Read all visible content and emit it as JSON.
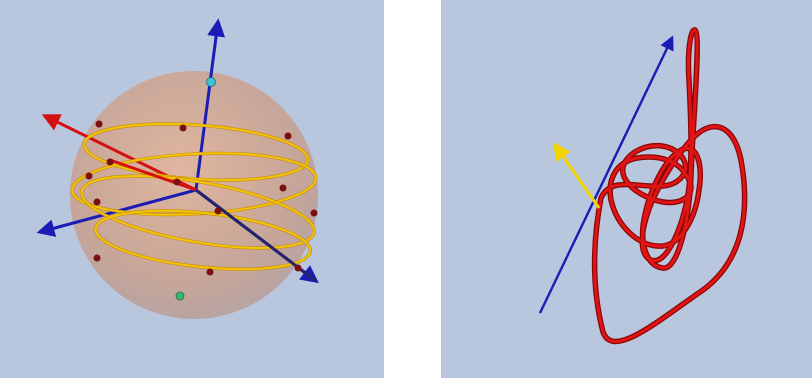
{
  "colors": {
    "background": "#b8c6de",
    "sphere": "#d4a58e",
    "circle": "#f2c50a",
    "circle_outline": "#c88a00",
    "dot": "#7a1010",
    "pole_dot": "#39c3d4",
    "axis_blue": "#1b1bb5",
    "axis_dark": "#23236e",
    "axis_red": "#d41010",
    "axis_yellow": "#f2d200",
    "knot": "#d40c0c",
    "knot_shadow": "#8a0606"
  },
  "icons": {
    "left": "sphere-with-latitude-circles",
    "right": "knot-curve-with-axes"
  }
}
